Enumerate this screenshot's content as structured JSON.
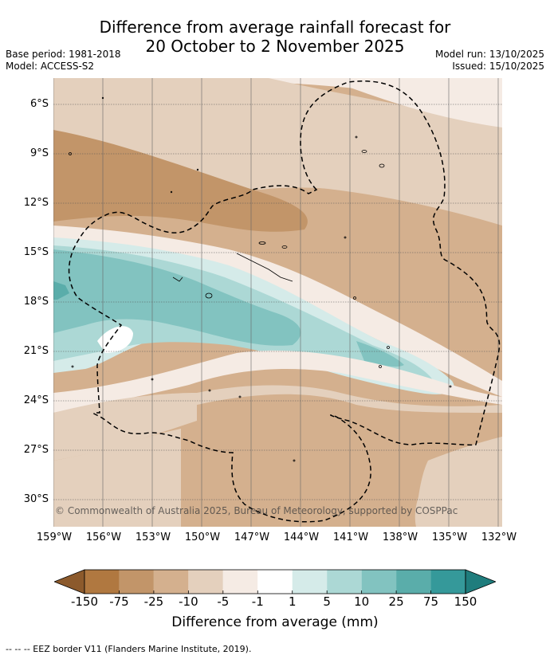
{
  "title_line1": "Difference from average rainfall forecast for",
  "title_line2": "20 October to 2 November 2025",
  "meta_left": [
    "Base period: 1981-2018",
    "Model: ACCESS-S2"
  ],
  "meta_right": [
    "Model run: 13/10/2025",
    "Issued: 15/10/2025"
  ],
  "copyright": "© Commonwealth of Australia 2025, Bureau of Meteorology, supported by COSPPac",
  "lat_labels": [
    "6°S",
    "9°S",
    "12°S",
    "15°S",
    "18°S",
    "21°S",
    "24°S",
    "27°S",
    "30°S"
  ],
  "lon_labels": [
    "159°W",
    "156°W",
    "153°W",
    "150°W",
    "147°W",
    "144°W",
    "141°W",
    "138°W",
    "135°W",
    "132°W"
  ],
  "colorbar": {
    "title": "Difference from average (mm)",
    "ticks": [
      "-150",
      "-75",
      "-25",
      "-10",
      "-5",
      "-1",
      "1",
      "5",
      "10",
      "25",
      "75",
      "150"
    ],
    "colors": [
      "#8c5a2c",
      "#b07840",
      "#c29569",
      "#d4b08e",
      "#e4d0bd",
      "#f5ebe4",
      "#ffffff",
      "#d5ebe9",
      "#acd8d5",
      "#82c3c0",
      "#5aadaa",
      "#35999a",
      "#1f7d7d"
    ]
  },
  "footnote": "-- -- -- EEZ border V11 (Flanders Marine Institute, 2019)."
}
